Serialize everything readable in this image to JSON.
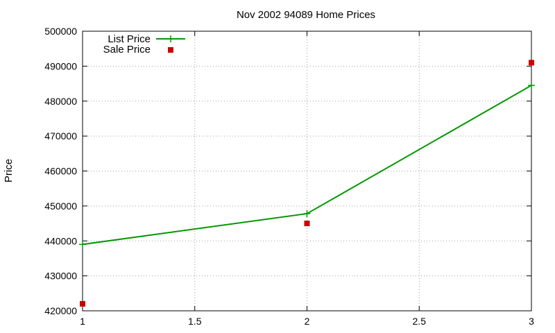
{
  "chart_data": {
    "type": "line",
    "title": "Nov 2002 94089 Home Prices",
    "xlabel": "",
    "ylabel": "Price",
    "xlim": [
      1,
      3
    ],
    "ylim": [
      420000,
      500000
    ],
    "xticks": [
      1,
      1.5,
      2,
      2.5,
      3
    ],
    "xtick_labels": [
      "1",
      "1.5",
      "2",
      "2.5",
      "3"
    ],
    "yticks": [
      420000,
      430000,
      440000,
      450000,
      460000,
      470000,
      480000,
      490000,
      500000
    ],
    "ytick_labels": [
      "420000",
      "430000",
      "440000",
      "450000",
      "460000",
      "470000",
      "480000",
      "490000",
      "500000"
    ],
    "grid": true,
    "legend_position": "top-left",
    "series": [
      {
        "name": "List Price",
        "style": "linespoints",
        "marker": "plus",
        "color": "#009900",
        "x": [
          1,
          2,
          3
        ],
        "y": [
          439000,
          447800,
          484500
        ]
      },
      {
        "name": "Sale Price",
        "style": "points",
        "marker": "square",
        "color": "#cc0000",
        "x": [
          1,
          2,
          3
        ],
        "y": [
          422000,
          445000,
          491000
        ]
      }
    ]
  }
}
